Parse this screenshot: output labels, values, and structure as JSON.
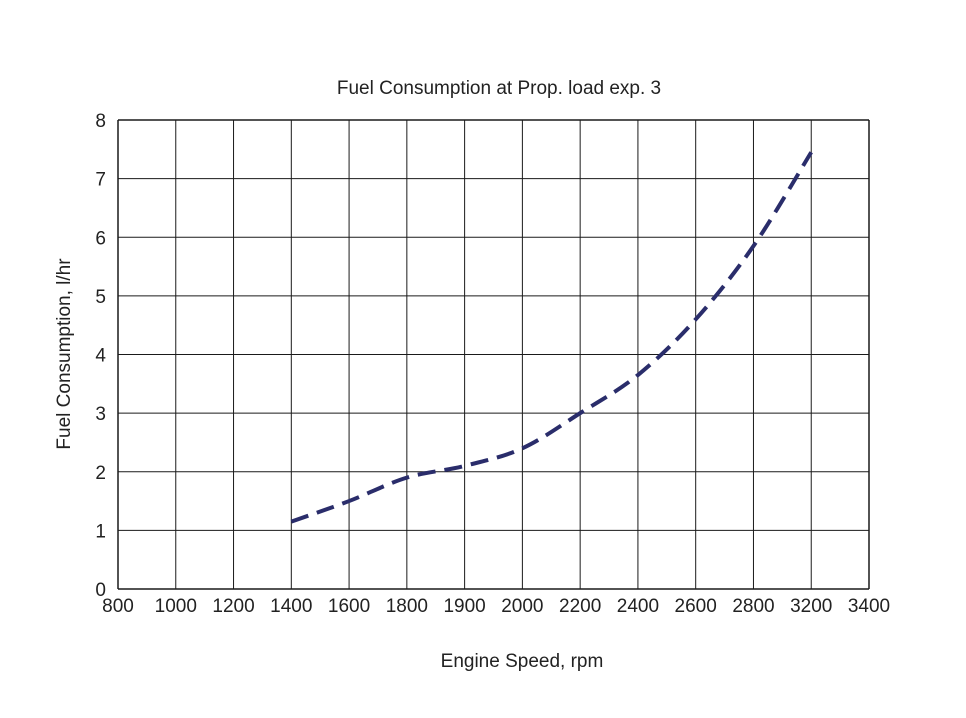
{
  "chart_data": {
    "type": "line",
    "title": "Fuel Consumption at Prop. load exp. 3",
    "xlabel": "Engine Speed, rpm",
    "ylabel": "Fuel Consumption, l/hr",
    "categories": [
      "800",
      "1000",
      "1200",
      "1400",
      "1600",
      "1800",
      "1900",
      "2000",
      "2200",
      "2400",
      "2600",
      "2800",
      "3200",
      "3400"
    ],
    "y_ticks": [
      "0",
      "1",
      "2",
      "3",
      "4",
      "5",
      "6",
      "7",
      "8"
    ],
    "ylim": [
      0,
      8
    ],
    "grid": true,
    "series": [
      {
        "x": [
          "1400",
          "1600",
          "1800",
          "1900",
          "2000",
          "2200",
          "2400",
          "2600",
          "2800",
          "3200"
        ],
        "values": [
          1.15,
          1.5,
          1.9,
          2.1,
          2.4,
          3.0,
          3.65,
          4.6,
          5.85,
          7.45
        ],
        "color": "#2a2d6b",
        "style": "dashed"
      }
    ]
  }
}
